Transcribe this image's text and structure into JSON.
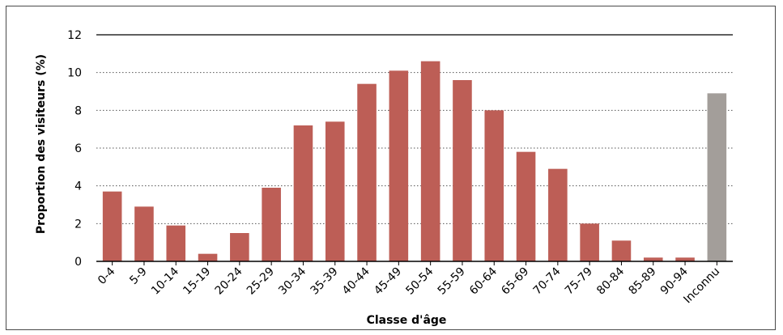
{
  "chart_data": {
    "type": "bar",
    "title": "",
    "xlabel": "Classe d'âge",
    "ylabel": "Proportion des visiteurs (%)",
    "ylim": [
      0,
      12
    ],
    "yticks": [
      "0",
      "2",
      "4",
      "6",
      "8",
      "10",
      "12"
    ],
    "grid": "horizontal dotted",
    "categories": [
      "0-4",
      "5-9",
      "10-14",
      "15-19",
      "20-24",
      "25-29",
      "30-34",
      "35-39",
      "40-44",
      "45-49",
      "50-54",
      "55-59",
      "60-64",
      "65-69",
      "70-74",
      "75-79",
      "80-84",
      "85-89",
      "90-94",
      "Inconnu"
    ],
    "values": [
      3.7,
      2.9,
      1.9,
      0.4,
      1.5,
      3.9,
      7.2,
      7.4,
      9.4,
      10.1,
      10.6,
      9.6,
      8.0,
      5.8,
      4.9,
      2.0,
      1.1,
      0.2,
      0.2,
      8.9
    ],
    "colors": {
      "bar": "#bd5e56",
      "unknown_bar": "#a39e9a",
      "grid": "#555555",
      "axis": "#000000"
    }
  }
}
